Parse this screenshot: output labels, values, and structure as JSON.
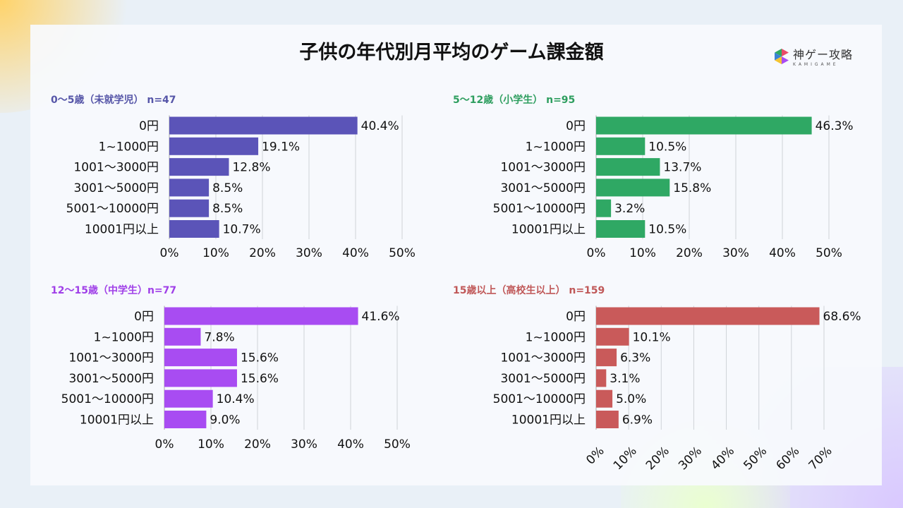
{
  "title": "子供の年代別月平均のゲーム課金額",
  "logo": {
    "main": "神ゲー攻略",
    "sub": "KAMIGAME"
  },
  "chart_data": [
    {
      "type": "bar",
      "orientation": "horizontal",
      "title": "0〜5歳（未就学児） n=47",
      "title_color": "#5656a8",
      "bar_color": "#5b54b8",
      "categories": [
        "0円",
        "1~1000円",
        "1001〜3000円",
        "3001〜5000円",
        "5001〜10000円",
        "10001円以上"
      ],
      "values": [
        40.4,
        19.1,
        12.8,
        8.5,
        8.5,
        10.7
      ],
      "xlim": [
        0,
        50
      ],
      "xticks": [
        "0%",
        "10%",
        "20%",
        "30%",
        "40%",
        "50%"
      ],
      "grid": true
    },
    {
      "type": "bar",
      "orientation": "horizontal",
      "title": "5〜12歳（小学生） n=95",
      "title_color": "#2e9e5f",
      "bar_color": "#2fa864",
      "categories": [
        "0円",
        "1~1000円",
        "1001〜3000円",
        "3001〜5000円",
        "5001〜10000円",
        "10001円以上"
      ],
      "values": [
        46.3,
        10.5,
        13.7,
        15.8,
        3.2,
        10.5
      ],
      "xlim": [
        0,
        50
      ],
      "xticks": [
        "0%",
        "10%",
        "20%",
        "30%",
        "40%",
        "50%"
      ],
      "grid": true
    },
    {
      "type": "bar",
      "orientation": "horizontal",
      "title": "12〜15歳（中学生）n=77",
      "title_color": "#a040e8",
      "bar_color": "#a84cf2",
      "categories": [
        "0円",
        "1~1000円",
        "1001〜3000円",
        "3001〜5000円",
        "5001〜10000円",
        "10001円以上"
      ],
      "values": [
        41.6,
        7.8,
        15.6,
        15.6,
        10.4,
        9.0
      ],
      "xlim": [
        0,
        50
      ],
      "xticks": [
        "0%",
        "10%",
        "20%",
        "30%",
        "40%",
        "50%"
      ],
      "grid": true
    },
    {
      "type": "bar",
      "orientation": "horizontal",
      "title": "15歳以上（高校生以上） n=159",
      "title_color": "#c05858",
      "bar_color": "#c95a5a",
      "categories": [
        "0円",
        "1~1000円",
        "1001〜3000円",
        "3001〜5000円",
        "5001〜10000円",
        "10001円以上"
      ],
      "values": [
        68.6,
        10.1,
        6.3,
        3.1,
        5.0,
        6.9
      ],
      "xlim": [
        0,
        70
      ],
      "xticks": [
        "0%",
        "10%",
        "20%",
        "30%",
        "40%",
        "50%",
        "60%",
        "70%"
      ],
      "grid": true,
      "xtick_rotation": -45
    }
  ]
}
